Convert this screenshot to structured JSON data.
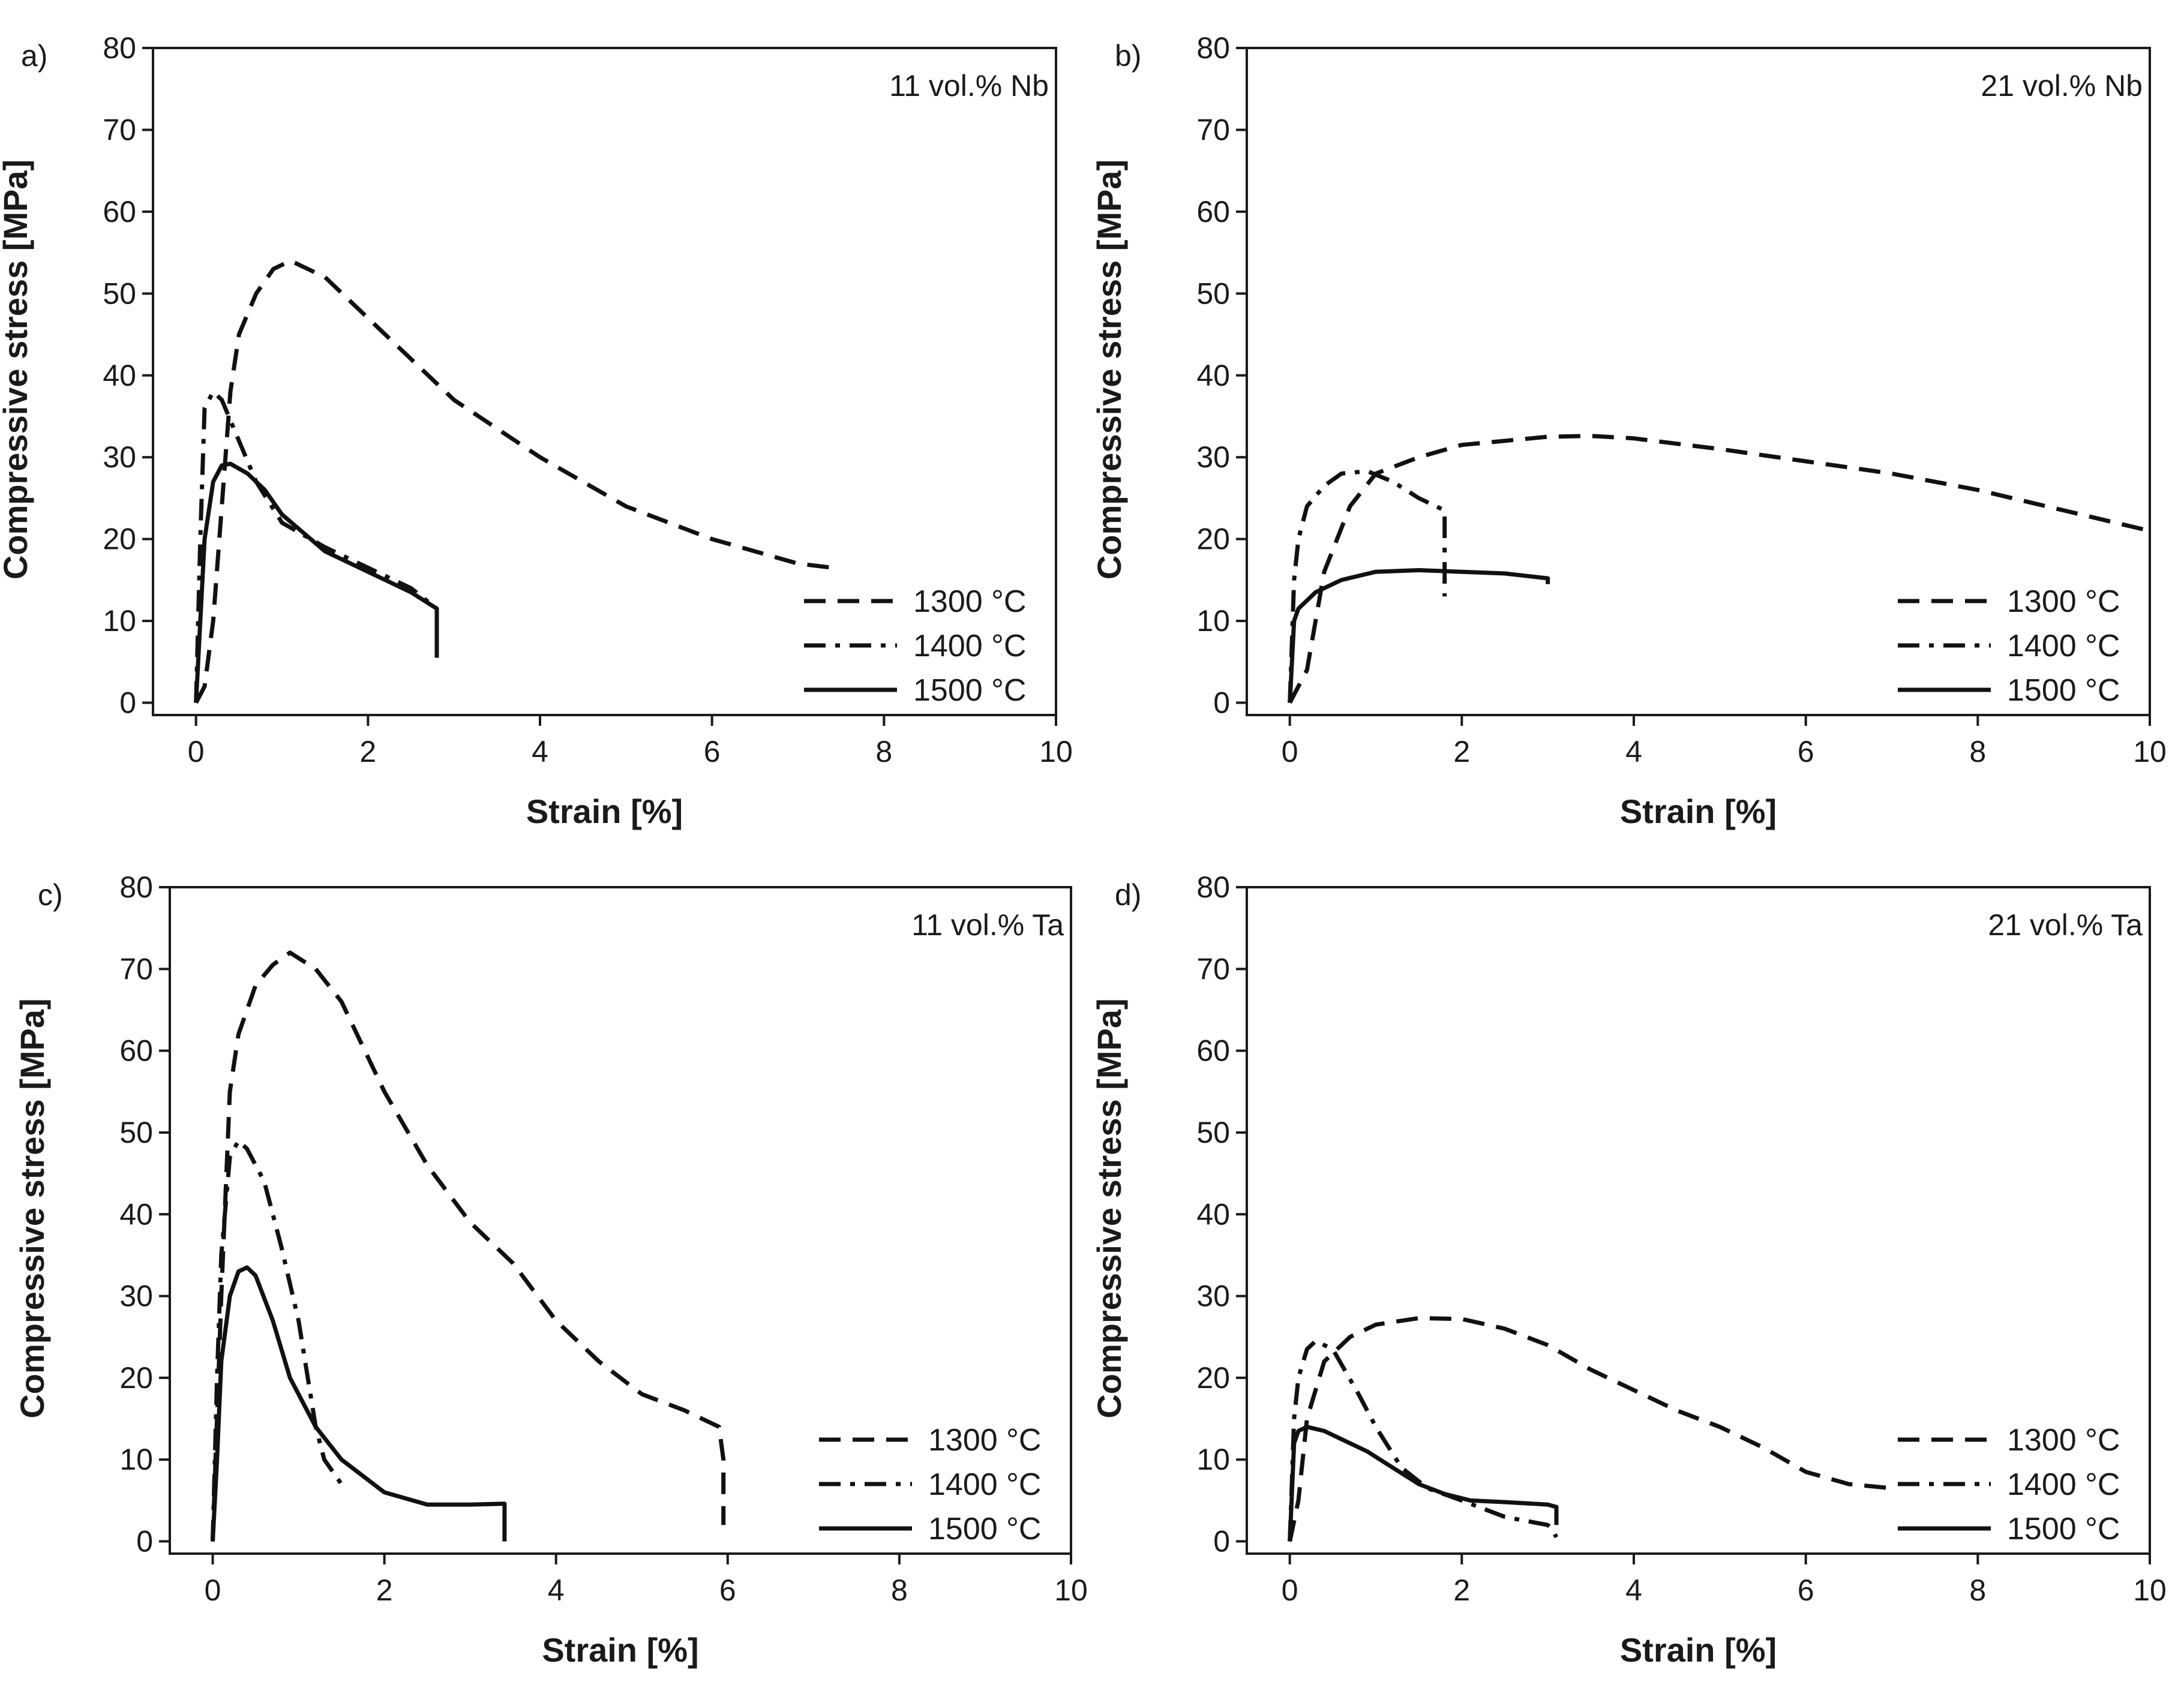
{
  "chart_data": [
    {
      "panel": "a)",
      "annotation": "11 vol.% Nb",
      "type": "line",
      "xlabel": "Strain [%]",
      "ylabel": "Compressive stress [MPa]",
      "xlim": [
        -0.5,
        10
      ],
      "ylim": [
        -1.5,
        80
      ],
      "xticks": [
        0,
        2,
        4,
        6,
        8,
        10
      ],
      "yticks": [
        0,
        10,
        20,
        30,
        40,
        50,
        60,
        70,
        80
      ],
      "legend_position": "bottom-right",
      "series": [
        {
          "name": "1300 °C",
          "style": "dashed",
          "x": [
            0.0,
            0.1,
            0.2,
            0.4,
            0.5,
            0.7,
            0.9,
            1.1,
            1.5,
            2.0,
            2.5,
            3.0,
            4.0,
            5.0,
            6.0,
            7.0,
            7.4
          ],
          "y": [
            0,
            2,
            10,
            38,
            45,
            50,
            53,
            54,
            52,
            47,
            42,
            37,
            30,
            24,
            20,
            17,
            16.5
          ]
        },
        {
          "name": "1400 °C",
          "style": "dashdot",
          "x": [
            0.0,
            0.05,
            0.1,
            0.2,
            0.3,
            0.5,
            0.7,
            1.0,
            1.5,
            2.0,
            2.5,
            2.8,
            2.8
          ],
          "y": [
            0,
            20,
            36,
            38,
            37,
            32,
            27,
            22,
            19,
            16.5,
            14,
            11.5,
            6
          ]
        },
        {
          "name": "1500 °C",
          "style": "solid",
          "x": [
            0.0,
            0.05,
            0.1,
            0.2,
            0.3,
            0.4,
            0.6,
            0.8,
            1.0,
            1.5,
            2.0,
            2.5,
            2.8,
            2.8
          ],
          "y": [
            0,
            10,
            20,
            27,
            29,
            29.2,
            28,
            26,
            23,
            18.5,
            16,
            13.5,
            11.5,
            5.5
          ]
        }
      ]
    },
    {
      "panel": "b)",
      "annotation": "21 vol.% Nb",
      "type": "line",
      "xlabel": "Strain [%]",
      "ylabel": "Compressive stress [MPa]",
      "xlim": [
        -0.5,
        10
      ],
      "ylim": [
        -1.5,
        80
      ],
      "xticks": [
        0,
        2,
        4,
        6,
        8,
        10
      ],
      "yticks": [
        0,
        10,
        20,
        30,
        40,
        50,
        60,
        70,
        80
      ],
      "legend_position": "bottom-right",
      "series": [
        {
          "name": "1300 °C",
          "style": "dashed",
          "x": [
            0.0,
            0.2,
            0.4,
            0.7,
            1.0,
            1.5,
            2.0,
            3.0,
            3.5,
            4.0,
            5.0,
            6.0,
            7.0,
            8.0,
            9.0,
            10.0
          ],
          "y": [
            0,
            4,
            16,
            24,
            28,
            30,
            31.5,
            32.5,
            32.6,
            32.3,
            31,
            29.5,
            28,
            26,
            23.5,
            21
          ]
        },
        {
          "name": "1400 °C",
          "style": "dashdot",
          "x": [
            0.0,
            0.05,
            0.1,
            0.2,
            0.4,
            0.6,
            0.9,
            1.2,
            1.5,
            1.8,
            1.8
          ],
          "y": [
            0,
            15,
            20,
            24,
            26.5,
            28,
            28.3,
            27,
            25,
            23.5,
            13
          ]
        },
        {
          "name": "1500 °C",
          "style": "solid",
          "x": [
            0.0,
            0.05,
            0.1,
            0.3,
            0.6,
            1.0,
            1.5,
            2.0,
            2.5,
            3.0,
            3.0
          ],
          "y": [
            0,
            10,
            11.5,
            13.5,
            15,
            16,
            16.2,
            16,
            15.8,
            15.2,
            14.5
          ]
        }
      ]
    },
    {
      "panel": "c)",
      "annotation": "11 vol.% Ta",
      "type": "line",
      "xlabel": "Strain [%]",
      "ylabel": "Compressive stress [MPa]",
      "xlim": [
        -0.5,
        10
      ],
      "ylim": [
        -1.5,
        80
      ],
      "xticks": [
        0,
        2,
        4,
        6,
        8,
        10
      ],
      "yticks": [
        0,
        10,
        20,
        30,
        40,
        50,
        60,
        70,
        80
      ],
      "legend_position": "bottom-right",
      "series": [
        {
          "name": "1300 °C",
          "style": "dashed",
          "x": [
            0.0,
            0.1,
            0.2,
            0.3,
            0.5,
            0.7,
            0.9,
            1.2,
            1.5,
            2.0,
            2.5,
            3.0,
            3.5,
            4.0,
            4.5,
            5.0,
            5.5,
            5.9,
            5.95,
            5.95
          ],
          "y": [
            0,
            30,
            55,
            62,
            68,
            70.5,
            72,
            70,
            66,
            55,
            46,
            39,
            34,
            27,
            22,
            18,
            16,
            14,
            10,
            2
          ]
        },
        {
          "name": "1400 °C",
          "style": "dashdot",
          "x": [
            0.0,
            0.05,
            0.1,
            0.2,
            0.3,
            0.4,
            0.6,
            0.8,
            1.0,
            1.2,
            1.3,
            1.5
          ],
          "y": [
            0,
            20,
            35,
            47,
            49,
            48,
            44,
            36,
            27,
            14,
            10,
            7
          ]
        },
        {
          "name": "1500 °C",
          "style": "solid",
          "x": [
            0.0,
            0.05,
            0.1,
            0.2,
            0.3,
            0.4,
            0.5,
            0.7,
            0.9,
            1.2,
            1.5,
            2.0,
            2.5,
            3.0,
            3.4,
            3.4
          ],
          "y": [
            0,
            10,
            22,
            30,
            33,
            33.5,
            32.5,
            27,
            20,
            14,
            10,
            6,
            4.5,
            4.5,
            4.6,
            0
          ]
        }
      ]
    },
    {
      "panel": "d)",
      "annotation": "21 vol.% Ta",
      "type": "line",
      "xlabel": "Strain [%]",
      "ylabel": "Compressive stress [MPa]",
      "xlim": [
        -0.5,
        10
      ],
      "ylim": [
        -1.5,
        80
      ],
      "xticks": [
        0,
        2,
        4,
        6,
        8,
        10
      ],
      "yticks": [
        0,
        10,
        20,
        30,
        40,
        50,
        60,
        70,
        80
      ],
      "legend_position": "bottom-right",
      "series": [
        {
          "name": "1300 °C",
          "style": "dashed",
          "x": [
            0.0,
            0.1,
            0.2,
            0.4,
            0.7,
            1.0,
            1.5,
            2.0,
            2.5,
            3.0,
            3.5,
            4.0,
            4.5,
            5.0,
            5.5,
            6.0,
            6.5,
            7.0
          ],
          "y": [
            0,
            5,
            15,
            22,
            25,
            26.5,
            27.3,
            27.2,
            26,
            24,
            21,
            18.5,
            16,
            14,
            11.5,
            8.5,
            7,
            6.5
          ]
        },
        {
          "name": "1400 °C",
          "style": "dashdot",
          "x": [
            0.0,
            0.05,
            0.1,
            0.2,
            0.3,
            0.5,
            0.8,
            1.0,
            1.3,
            1.6,
            2.0,
            2.5,
            3.0,
            3.05,
            3.1
          ],
          "y": [
            0,
            15,
            20,
            23.5,
            24.5,
            23.5,
            18,
            14,
            9,
            6.5,
            5,
            3,
            2,
            1.5,
            0.5
          ]
        },
        {
          "name": "1500 °C",
          "style": "solid",
          "x": [
            0.0,
            0.05,
            0.1,
            0.2,
            0.4,
            0.6,
            0.9,
            1.2,
            1.5,
            1.8,
            2.1,
            2.5,
            3.0,
            3.1,
            3.1
          ],
          "y": [
            0,
            12,
            13.5,
            14,
            13.5,
            12.5,
            11,
            9,
            7,
            5.8,
            5,
            4.8,
            4.5,
            4.2,
            2
          ]
        }
      ]
    }
  ]
}
